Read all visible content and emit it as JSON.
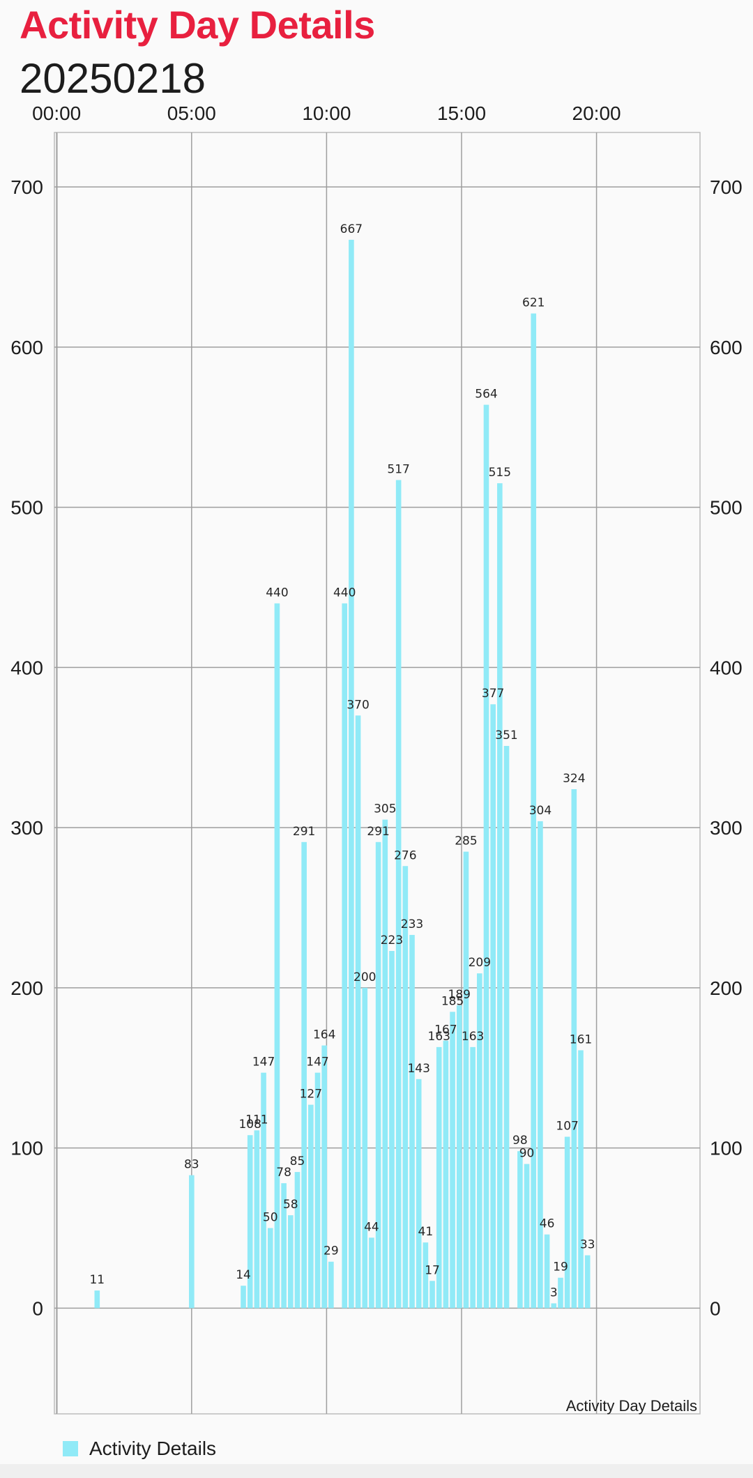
{
  "header": {
    "title": "Activity Day Details",
    "date": "20250218"
  },
  "colors": {
    "accent": "#e8203f",
    "bar": "#90eaf7",
    "grid": "#9e9e9e",
    "text": "#1c1c1c"
  },
  "legend": {
    "label": "Activity Details"
  },
  "chart_data": {
    "type": "bar",
    "description_label": "Activity Day Details",
    "series": [
      {
        "name": "Activity Details",
        "points": [
          {
            "x": "01:30",
            "y": 11
          },
          {
            "x": "05:00",
            "y": 83
          },
          {
            "x": "06:55",
            "y": 14
          },
          {
            "x": "07:10",
            "y": 108
          },
          {
            "x": "07:25",
            "y": 111
          },
          {
            "x": "07:40",
            "y": 147
          },
          {
            "x": "07:55",
            "y": 50
          },
          {
            "x": "08:10",
            "y": 440
          },
          {
            "x": "08:25",
            "y": 78
          },
          {
            "x": "08:40",
            "y": 58
          },
          {
            "x": "08:55",
            "y": 85
          },
          {
            "x": "09:10",
            "y": 291
          },
          {
            "x": "09:25",
            "y": 127
          },
          {
            "x": "09:40",
            "y": 147
          },
          {
            "x": "09:55",
            "y": 164
          },
          {
            "x": "10:10",
            "y": 29
          },
          {
            "x": "10:40",
            "y": 440
          },
          {
            "x": "10:55",
            "y": 667
          },
          {
            "x": "11:10",
            "y": 370
          },
          {
            "x": "11:25",
            "y": 200
          },
          {
            "x": "11:40",
            "y": 44
          },
          {
            "x": "11:55",
            "y": 291
          },
          {
            "x": "12:10",
            "y": 305
          },
          {
            "x": "12:25",
            "y": 223
          },
          {
            "x": "12:40",
            "y": 517
          },
          {
            "x": "12:55",
            "y": 276
          },
          {
            "x": "13:10",
            "y": 233
          },
          {
            "x": "13:25",
            "y": 143
          },
          {
            "x": "13:40",
            "y": 41
          },
          {
            "x": "13:55",
            "y": 17
          },
          {
            "x": "14:10",
            "y": 163
          },
          {
            "x": "14:25",
            "y": 167
          },
          {
            "x": "14:40",
            "y": 185
          },
          {
            "x": "14:55",
            "y": 189
          },
          {
            "x": "15:10",
            "y": 285
          },
          {
            "x": "15:25",
            "y": 163
          },
          {
            "x": "15:40",
            "y": 209
          },
          {
            "x": "15:55",
            "y": 564
          },
          {
            "x": "16:10",
            "y": 377
          },
          {
            "x": "16:25",
            "y": 515
          },
          {
            "x": "16:40",
            "y": 351
          },
          {
            "x": "17:10",
            "y": 98
          },
          {
            "x": "17:25",
            "y": 90
          },
          {
            "x": "17:40",
            "y": 621
          },
          {
            "x": "17:55",
            "y": 304
          },
          {
            "x": "18:10",
            "y": 46
          },
          {
            "x": "18:25",
            "y": 3
          },
          {
            "x": "18:40",
            "y": 19
          },
          {
            "x": "18:55",
            "y": 107
          },
          {
            "x": "19:10",
            "y": 324
          },
          {
            "x": "19:25",
            "y": 161
          },
          {
            "x": "19:40",
            "y": 33
          }
        ]
      }
    ],
    "x_ticks": [
      "00:00",
      "05:00",
      "10:00",
      "15:00",
      "20:00"
    ],
    "x_range": [
      "-00:05",
      "23:50"
    ],
    "y_ticks": [
      0,
      100,
      200,
      300,
      400,
      500,
      600,
      700
    ],
    "ylim": [
      -66,
      734
    ],
    "axis_position": "x-top, y-left-and-right",
    "grid": true,
    "legend_position": "bottom-left"
  }
}
